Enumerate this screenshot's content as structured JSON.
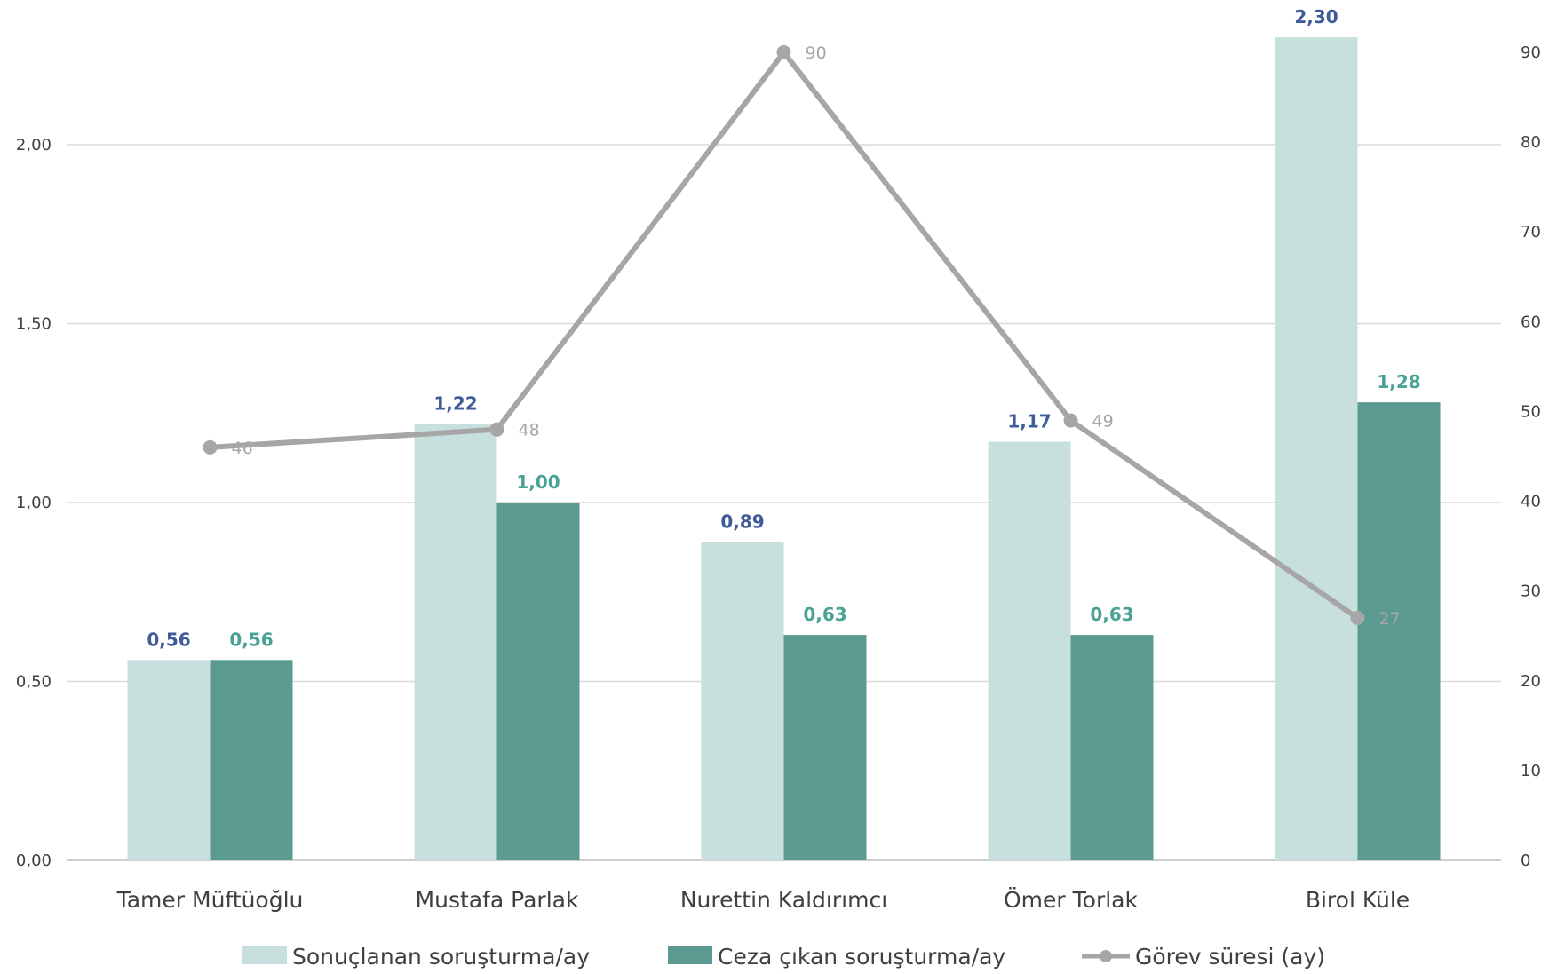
{
  "chart_data": {
    "type": "bar",
    "categories": [
      "Tamer Müftüoğlu",
      "Mustafa Parlak",
      "Nurettin Kaldırımcı",
      "Ömer Torlak",
      "Birol Küle"
    ],
    "series": [
      {
        "name": "Sonuçlanan soruşturma/ay",
        "type": "bar",
        "axis": "left",
        "color": "#c8e0dd",
        "label_color": "#3f5b9a",
        "values": [
          0.56,
          1.22,
          0.89,
          1.17,
          2.3
        ],
        "labels": [
          "0,56",
          "1,22",
          "0,89",
          "1,17",
          "2,30"
        ]
      },
      {
        "name": "Ceza çıkan soruşturma/ay",
        "type": "bar",
        "axis": "left",
        "color": "#5b9a90",
        "label_color": "#4aa295",
        "values": [
          0.56,
          1.0,
          0.63,
          0.63,
          1.28
        ],
        "labels": [
          "0,56",
          "1,00",
          "0,63",
          "0,63",
          "1,28"
        ]
      },
      {
        "name": "Görev süresi (ay)",
        "type": "line",
        "axis": "right",
        "color": "#a6a6a6",
        "values": [
          46,
          48,
          90,
          49,
          27
        ],
        "labels": [
          "46",
          "48",
          "90",
          "49",
          "27"
        ]
      }
    ],
    "y_left": {
      "ylim": [
        0,
        2.3
      ],
      "ticks": [
        0,
        0.5,
        1.0,
        1.5,
        2.0
      ],
      "tick_labels": [
        "0,00",
        "0,50",
        "1,00",
        "1,50",
        "2,00"
      ]
    },
    "y_right": {
      "ylim": [
        0,
        92
      ],
      "ticks": [
        0,
        10,
        20,
        30,
        40,
        50,
        60,
        70,
        80,
        90
      ],
      "tick_labels": [
        "0",
        "10",
        "20",
        "30",
        "40",
        "50",
        "60",
        "70",
        "80",
        "90"
      ]
    },
    "grid": true,
    "legend_position": "bottom",
    "title": "",
    "xlabel": "",
    "ylabel": ""
  }
}
